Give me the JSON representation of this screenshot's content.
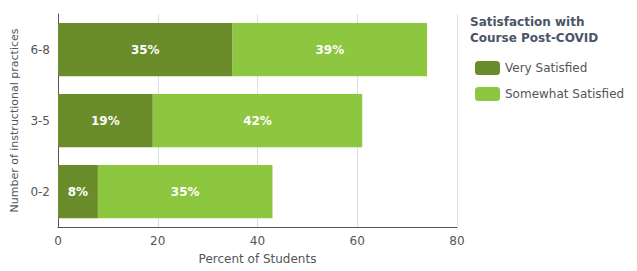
{
  "chart_data": {
    "type": "bar",
    "orientation": "horizontal",
    "stacked": true,
    "categories": [
      "0-2",
      "3-5",
      "6-8"
    ],
    "series": [
      {
        "name": "Very Satisfied",
        "color": "#6b8c2a",
        "values": [
          8,
          19,
          35
        ],
        "value_labels": [
          "8%",
          "19%",
          "35%"
        ]
      },
      {
        "name": "Somewhat Satisfied",
        "color": "#8dc63f",
        "values": [
          35,
          42,
          39
        ],
        "value_labels": [
          "35%",
          "42%",
          "39%"
        ]
      }
    ],
    "xlabel": "Percent of Students",
    "ylabel": "Number of instructional practices",
    "legend_title": "Satisfaction with\nCourse Post-COVID",
    "xlim": [
      0,
      80
    ],
    "xticks": [
      0,
      20,
      40,
      60,
      80
    ],
    "grid": true,
    "data_labels": true,
    "legend": "right"
  }
}
